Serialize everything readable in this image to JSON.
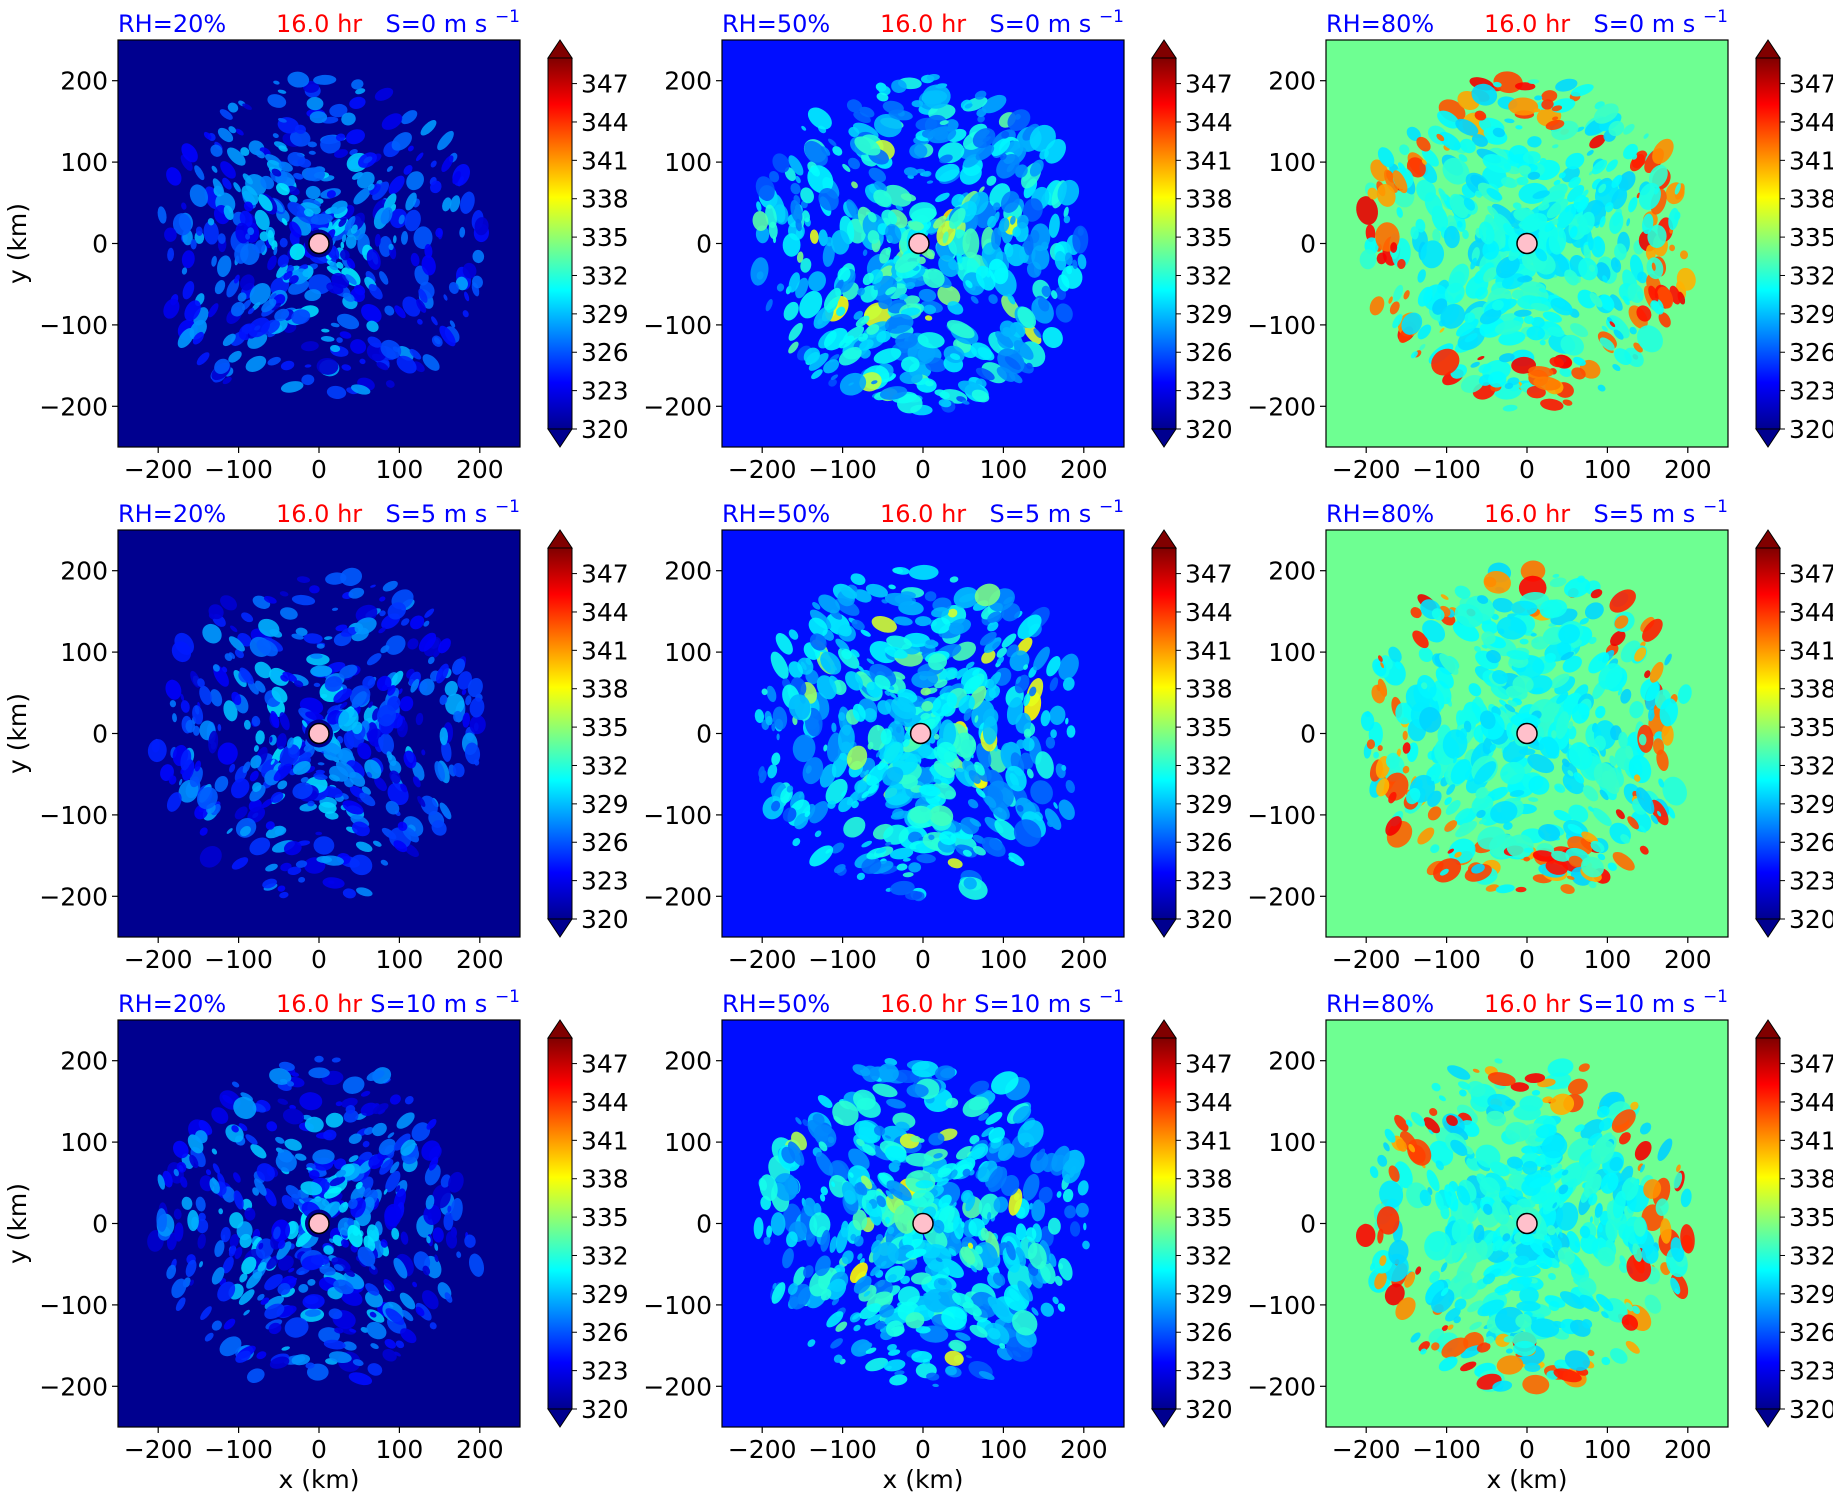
{
  "figure": {
    "rows": 3,
    "cols": 3
  },
  "colormap": {
    "name": "jet",
    "colors": [
      "#00008f",
      "#0000ff",
      "#0080ff",
      "#00ffff",
      "#80ff80",
      "#ffff00",
      "#ff8000",
      "#ff0000",
      "#800000"
    ],
    "ticks": [
      "320",
      "323",
      "326",
      "329",
      "332",
      "335",
      "338",
      "341",
      "344",
      "347"
    ],
    "vmin": 320,
    "vmax": 349
  },
  "axes": {
    "x_ticks": [
      "−200",
      "−100",
      "0",
      "100",
      "200"
    ],
    "y_ticks": [
      "200",
      "100",
      "0",
      "−100",
      "−200"
    ],
    "xlabel": "x (km)",
    "ylabel": "y (km)"
  },
  "chart_data": [
    {
      "type": "heatmap",
      "rh": "RH=20%",
      "time": "16.0 hr",
      "shear": "S=0 m s",
      "shear_exp": "−1",
      "background_k": 320,
      "mean_core_k": 327,
      "center_km": [
        0,
        0
      ]
    },
    {
      "type": "heatmap",
      "rh": "RH=50%",
      "time": "16.0 hr",
      "shear": "S=0 m s",
      "shear_exp": "−1",
      "background_k": 324,
      "mean_core_k": 331,
      "center_km": [
        -5,
        0
      ]
    },
    {
      "type": "heatmap",
      "rh": "RH=80%",
      "time": "16.0 hr",
      "shear": "S=0 m s",
      "shear_exp": "−1",
      "background_k": 334,
      "mean_core_k": 331,
      "center_km": [
        0,
        0
      ]
    },
    {
      "type": "heatmap",
      "rh": "RH=20%",
      "time": "16.0 hr",
      "shear": "S=5 m s",
      "shear_exp": "−1",
      "background_k": 320,
      "mean_core_k": 327,
      "center_km": [
        0,
        0
      ]
    },
    {
      "type": "heatmap",
      "rh": "RH=50%",
      "time": "16.0 hr",
      "shear": "S=5 m s",
      "shear_exp": "−1",
      "background_k": 324,
      "mean_core_k": 331,
      "center_km": [
        -3,
        0
      ]
    },
    {
      "type": "heatmap",
      "rh": "RH=80%",
      "time": "16.0 hr",
      "shear": "S=5 m s",
      "shear_exp": "−1",
      "background_k": 334,
      "mean_core_k": 331,
      "center_km": [
        0,
        0
      ]
    },
    {
      "type": "heatmap",
      "rh": "RH=20%",
      "time": "16.0 hr",
      "shear": "S=10 m s",
      "shear_exp": "−1",
      "background_k": 320,
      "mean_core_k": 327,
      "center_km": [
        0,
        0
      ]
    },
    {
      "type": "heatmap",
      "rh": "RH=50%",
      "time": "16.0 hr",
      "shear": "S=10 m s",
      "shear_exp": "−1",
      "background_k": 324,
      "mean_core_k": 331,
      "center_km": [
        0,
        0
      ]
    },
    {
      "type": "heatmap",
      "rh": "RH=80%",
      "time": "16.0 hr",
      "shear": "S=10 m s",
      "shear_exp": "−1",
      "background_k": 334,
      "mean_core_k": 331,
      "center_km": [
        0,
        0
      ]
    }
  ],
  "colors": {
    "title_blue": "#0000ff",
    "title_red": "#ff0000",
    "center_marker": "#ffc0cb"
  }
}
